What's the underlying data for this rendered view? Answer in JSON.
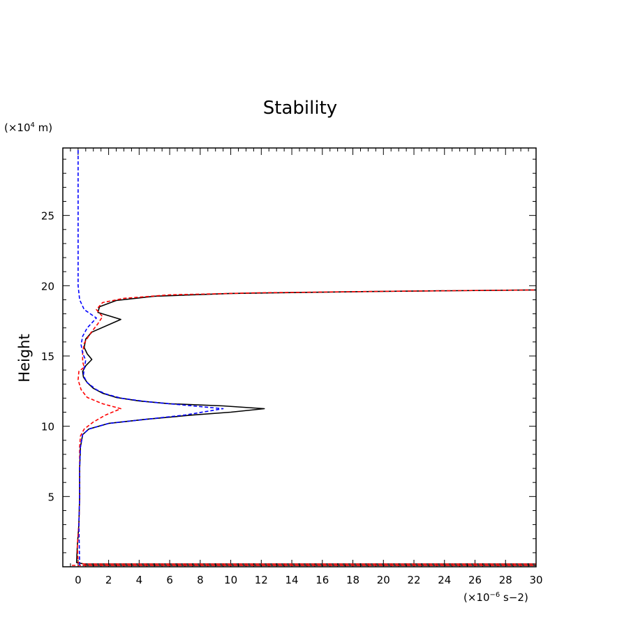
{
  "chart_data": {
    "type": "line",
    "title": "Stability",
    "ylabel": "Height",
    "yunit_prefix": "(×10",
    "yunit_exp": "4",
    "yunit_suffix": " m)",
    "xunit_prefix": "(×10",
    "xunit_exp": "−6",
    "xunit_suffix": " s−2)",
    "xlim": [
      -1,
      30
    ],
    "ylim": [
      0,
      29.8
    ],
    "xticks": [
      0,
      2,
      4,
      6,
      8,
      10,
      12,
      14,
      16,
      18,
      20,
      22,
      24,
      26,
      28,
      30
    ],
    "yticks": [
      5,
      10,
      15,
      20,
      25
    ],
    "grid": false,
    "series": [
      {
        "color": "#000000",
        "dash": "solid",
        "points": [
          [
            0.3,
            0.1
          ],
          [
            30,
            0.1
          ],
          [
            30,
            0.2
          ],
          [
            0.4,
            0.2
          ],
          [
            -0.1,
            0.3
          ],
          [
            -0.05,
            1.5
          ],
          [
            0.05,
            3
          ],
          [
            0.1,
            5
          ],
          [
            0.1,
            7
          ],
          [
            0.15,
            8.5
          ],
          [
            0.3,
            9.4
          ],
          [
            0.7,
            9.8
          ],
          [
            2,
            10.2
          ],
          [
            4.5,
            10.5
          ],
          [
            7.5,
            10.8
          ],
          [
            10,
            11.0
          ],
          [
            12.2,
            11.25
          ],
          [
            9.5,
            11.45
          ],
          [
            6,
            11.6
          ],
          [
            4,
            11.8
          ],
          [
            2.5,
            12.05
          ],
          [
            1.6,
            12.35
          ],
          [
            1,
            12.7
          ],
          [
            0.6,
            13.1
          ],
          [
            0.35,
            13.5
          ],
          [
            0.3,
            13.9
          ],
          [
            0.5,
            14.3
          ],
          [
            0.9,
            14.75
          ],
          [
            0.6,
            15.15
          ],
          [
            0.4,
            15.6
          ],
          [
            0.5,
            16.2
          ],
          [
            0.9,
            16.7
          ],
          [
            2.8,
            17.6
          ],
          [
            1.3,
            18.1
          ],
          [
            1.4,
            18.5
          ],
          [
            2.5,
            18.95
          ],
          [
            5,
            19.25
          ],
          [
            10,
            19.45
          ],
          [
            20,
            19.6
          ],
          [
            30,
            19.7
          ]
        ]
      },
      {
        "color": "#ff0000",
        "dash": "dashed",
        "points": [
          [
            -0.4,
            0.1
          ],
          [
            30,
            0.1
          ],
          [
            30,
            0.2
          ],
          [
            0.4,
            0.2
          ],
          [
            0,
            0.3
          ],
          [
            -0.05,
            1.5
          ],
          [
            0.05,
            3
          ],
          [
            0.1,
            5
          ],
          [
            0.1,
            7
          ],
          [
            0.1,
            8.5
          ],
          [
            0.15,
            9.3
          ],
          [
            0.4,
            9.8
          ],
          [
            1,
            10.3
          ],
          [
            1.8,
            10.8
          ],
          [
            2.8,
            11.25
          ],
          [
            1.6,
            11.6
          ],
          [
            0.6,
            12.05
          ],
          [
            0.2,
            12.6
          ],
          [
            0,
            13.3
          ],
          [
            0.05,
            13.9
          ],
          [
            0.4,
            14.2
          ],
          [
            0.3,
            14.6
          ],
          [
            0.3,
            15.2
          ],
          [
            0.4,
            15.9
          ],
          [
            0.8,
            16.6
          ],
          [
            1.3,
            17.3
          ],
          [
            1.6,
            17.8
          ],
          [
            1.2,
            18.3
          ],
          [
            1.6,
            18.8
          ],
          [
            3,
            19.1
          ],
          [
            6,
            19.35
          ],
          [
            12,
            19.5
          ],
          [
            20,
            19.6
          ],
          [
            30,
            19.7
          ]
        ]
      },
      {
        "color": "#0000ff",
        "dash": "dashed",
        "points": [
          [
            0.1,
            0.1
          ],
          [
            0.05,
            3
          ],
          [
            0.1,
            5
          ],
          [
            0.1,
            7
          ],
          [
            0.15,
            8.5
          ],
          [
            0.3,
            9.4
          ],
          [
            0.7,
            9.8
          ],
          [
            2,
            10.2
          ],
          [
            4.5,
            10.5
          ],
          [
            7,
            10.8
          ],
          [
            9.5,
            11.25
          ],
          [
            7,
            11.5
          ],
          [
            4.5,
            11.75
          ],
          [
            2.8,
            12.0
          ],
          [
            1.8,
            12.3
          ],
          [
            1.2,
            12.6
          ],
          [
            0.6,
            13.1
          ],
          [
            0.35,
            13.6
          ],
          [
            0.4,
            14.1
          ],
          [
            0.5,
            14.7
          ],
          [
            0.3,
            15.2
          ],
          [
            0.2,
            15.8
          ],
          [
            0.3,
            16.4
          ],
          [
            0.6,
            17.0
          ],
          [
            1.2,
            17.7
          ],
          [
            0.4,
            18.3
          ],
          [
            0.1,
            19.0
          ],
          [
            0,
            20
          ],
          [
            0,
            22
          ],
          [
            0,
            25
          ],
          [
            0,
            29.8
          ]
        ]
      }
    ]
  }
}
